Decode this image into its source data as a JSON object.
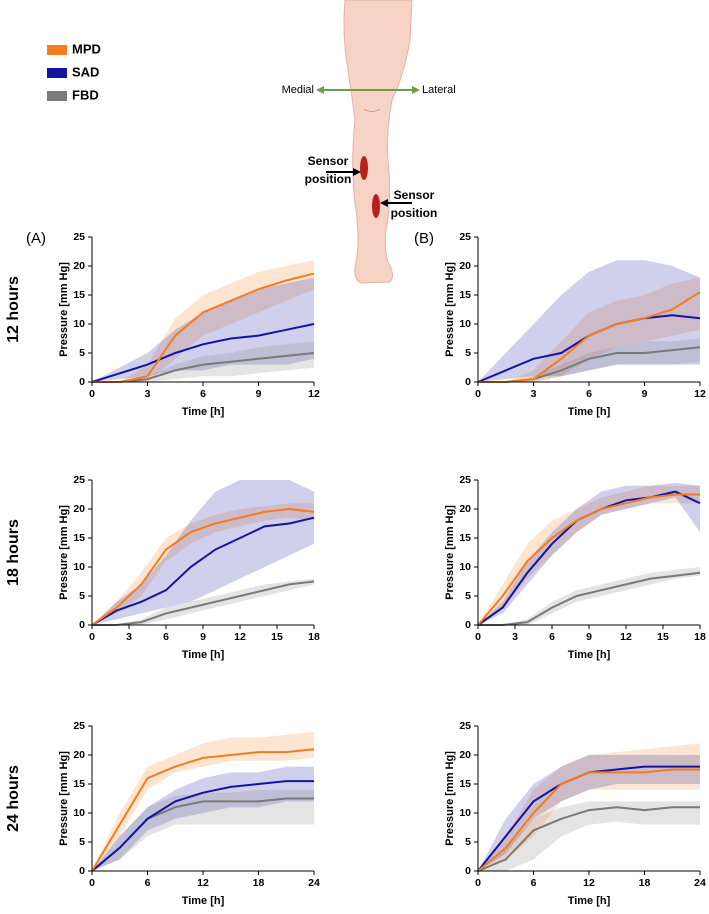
{
  "legend": [
    {
      "name": "MPD",
      "color": "#f47c20"
    },
    {
      "name": "SAD",
      "color": "#1414a0"
    },
    {
      "name": "FBD",
      "color": "#7a7a7a"
    }
  ],
  "panels": [
    "(A)",
    "(B)"
  ],
  "rows": [
    "12 hours",
    "18 hours",
    "24 hours"
  ],
  "diagram": {
    "medial": "Medial",
    "lateral": "Lateral",
    "sensor_labels": [
      [
        "Sensor",
        "position"
      ],
      [
        "Sensor",
        "position"
      ]
    ]
  },
  "chart_data": [
    {
      "type": "line",
      "xlabel": "Time [h]",
      "ylabel": "Pressure [mm Hg]",
      "xlim": [
        0,
        12
      ],
      "xticks": [
        0,
        3,
        6,
        9,
        12
      ],
      "ylim": [
        0,
        25
      ],
      "yticks": [
        0,
        5,
        10,
        15,
        20,
        25
      ],
      "x": [
        0,
        1.5,
        3,
        4.5,
        6,
        7.5,
        9,
        10.5,
        12
      ],
      "series": [
        {
          "values": [
            0,
            0,
            1,
            8,
            12,
            14,
            16,
            17.5,
            18.7
          ],
          "lower": [
            0,
            0,
            0,
            4,
            8,
            10,
            12,
            14,
            16
          ],
          "upper": [
            0,
            0,
            3,
            11,
            15,
            17,
            19,
            20,
            21
          ]
        },
        {
          "values": [
            0,
            1.5,
            3,
            5,
            6.5,
            7.5,
            8,
            9,
            10
          ],
          "lower": [
            0,
            0.5,
            1,
            2,
            2,
            3,
            3,
            3,
            4
          ],
          "upper": [
            0,
            2.5,
            5,
            9,
            12,
            14,
            16,
            17,
            18
          ]
        },
        {
          "values": [
            0,
            0,
            0.5,
            2,
            3,
            3.5,
            4,
            4.5,
            5
          ],
          "lower": [
            0,
            0,
            0,
            0.5,
            1,
            1,
            1.5,
            2,
            2.5
          ],
          "upper": [
            0,
            0,
            1,
            3,
            4.5,
            5,
            6,
            6.5,
            7
          ]
        }
      ]
    },
    {
      "type": "line",
      "xlabel": "Time [h]",
      "ylabel": "Pressure [mm Hg]",
      "xlim": [
        0,
        12
      ],
      "xticks": [
        0,
        3,
        6,
        9,
        12
      ],
      "ylim": [
        0,
        25
      ],
      "yticks": [
        0,
        5,
        10,
        15,
        20,
        25
      ],
      "x": [
        0,
        1.5,
        3,
        4.5,
        6,
        7.5,
        9,
        10.5,
        12
      ],
      "series": [
        {
          "values": [
            0,
            0,
            0.5,
            4,
            8,
            10,
            11,
            12.5,
            15.5
          ],
          "lower": [
            0,
            0,
            0,
            1,
            4,
            6,
            7,
            8,
            9
          ],
          "upper": [
            0,
            0,
            2,
            7,
            12,
            14,
            15,
            17,
            18
          ]
        },
        {
          "values": [
            0,
            2,
            4,
            5,
            8,
            10,
            11,
            11.5,
            11
          ],
          "lower": [
            0,
            0.5,
            1,
            1,
            2,
            3,
            3,
            3,
            3
          ],
          "upper": [
            0,
            5,
            10,
            15,
            19,
            21,
            21,
            20,
            18
          ]
        },
        {
          "values": [
            0,
            0,
            0.5,
            2,
            4,
            5,
            5,
            5.5,
            6
          ],
          "lower": [
            0,
            0,
            0,
            1,
            2,
            3,
            3,
            3,
            3.5
          ],
          "upper": [
            0,
            0,
            1,
            3,
            5,
            6,
            7,
            7,
            7.5
          ]
        }
      ]
    },
    {
      "type": "line",
      "xlabel": "Time [h]",
      "ylabel": "Pressure [mm Hg]",
      "xlim": [
        0,
        18
      ],
      "xticks": [
        0,
        3,
        6,
        9,
        12,
        15,
        18
      ],
      "ylim": [
        0,
        25
      ],
      "yticks": [
        0,
        5,
        10,
        15,
        20,
        25
      ],
      "x": [
        0,
        2,
        4,
        6,
        8,
        10,
        12,
        14,
        16,
        18
      ],
      "series": [
        {
          "values": [
            0,
            3,
            7,
            13,
            16,
            17.5,
            18.5,
            19.5,
            20,
            19.5
          ],
          "lower": [
            0,
            2,
            5,
            11,
            14,
            16,
            17,
            18,
            18.5,
            18
          ],
          "upper": [
            0,
            4,
            9,
            15,
            17.5,
            19,
            20,
            20.5,
            21,
            21
          ]
        },
        {
          "values": [
            0,
            2.5,
            4,
            6,
            10,
            13,
            15,
            17,
            17.5,
            18.5
          ],
          "lower": [
            0,
            1,
            2,
            3,
            4,
            6,
            8,
            10,
            12,
            14
          ],
          "upper": [
            0,
            4,
            7,
            12,
            18,
            23,
            25,
            25,
            25,
            23
          ]
        },
        {
          "values": [
            0,
            0,
            0.5,
            2,
            3,
            4,
            5,
            6,
            7,
            7.5
          ],
          "lower": [
            0,
            0,
            0,
            1,
            2,
            3,
            4,
            5,
            6,
            7
          ],
          "upper": [
            0,
            0,
            1,
            3,
            4,
            5,
            6,
            7,
            7.5,
            8
          ]
        }
      ]
    },
    {
      "type": "line",
      "xlabel": "Time [h]",
      "ylabel": "Pressure [mm Hg]",
      "xlim": [
        0,
        18
      ],
      "xticks": [
        0,
        3,
        6,
        9,
        12,
        15,
        18
      ],
      "ylim": [
        0,
        25
      ],
      "yticks": [
        0,
        5,
        10,
        15,
        20,
        25
      ],
      "x": [
        0,
        2,
        4,
        6,
        8,
        10,
        12,
        14,
        16,
        18
      ],
      "series": [
        {
          "values": [
            0,
            5,
            11,
            15,
            18,
            20,
            21,
            22,
            22.5,
            22.5
          ],
          "lower": [
            0,
            3,
            8,
            12,
            16,
            19,
            20,
            21,
            21,
            21
          ],
          "upper": [
            0,
            7,
            14,
            18,
            20,
            22,
            23,
            24,
            24,
            24
          ]
        },
        {
          "values": [
            0,
            3,
            9,
            14,
            18,
            20,
            21.5,
            22,
            23,
            21
          ],
          "lower": [
            0,
            2,
            7,
            12,
            16,
            19,
            20,
            21,
            22,
            16
          ],
          "upper": [
            0,
            4,
            11,
            16,
            20,
            23,
            24,
            24,
            24.5,
            24
          ]
        },
        {
          "values": [
            0,
            0,
            0.5,
            3,
            5,
            6,
            7,
            8,
            8.5,
            9
          ],
          "lower": [
            0,
            0,
            0,
            2,
            4,
            5,
            6,
            7,
            8,
            8.5
          ],
          "upper": [
            0,
            0,
            1,
            4,
            6,
            7,
            8,
            9,
            9.5,
            10
          ]
        }
      ]
    },
    {
      "type": "line",
      "xlabel": "Time [h]",
      "ylabel": "Pressure [mm Hg]",
      "xlim": [
        0,
        24
      ],
      "xticks": [
        0,
        6,
        12,
        18,
        24
      ],
      "ylim": [
        0,
        25
      ],
      "yticks": [
        0,
        5,
        10,
        15,
        20,
        25
      ],
      "x": [
        0,
        3,
        6,
        9,
        12,
        15,
        18,
        21,
        24
      ],
      "series": [
        {
          "values": [
            0,
            8,
            16,
            18,
            19.5,
            20,
            20.5,
            20.5,
            21
          ],
          "lower": [
            0,
            6,
            14,
            17,
            18,
            19,
            19,
            19,
            19.5
          ],
          "upper": [
            0,
            10,
            18,
            20,
            22,
            23,
            23,
            23.5,
            24
          ]
        },
        {
          "values": [
            0,
            4,
            9,
            12,
            13.5,
            14.5,
            15,
            15.5,
            15.5
          ],
          "lower": [
            0,
            2,
            7,
            9,
            10,
            11,
            11,
            12,
            12
          ],
          "upper": [
            0,
            6,
            11,
            14,
            16,
            17,
            17,
            18,
            18
          ]
        },
        {
          "values": [
            0,
            4,
            9,
            11,
            12,
            12,
            12,
            12.5,
            12.5
          ],
          "lower": [
            0,
            2,
            6,
            8,
            8,
            8,
            8,
            8,
            8
          ],
          "upper": [
            0,
            6,
            11,
            13,
            13.5,
            13.5,
            14,
            14,
            14
          ]
        }
      ]
    },
    {
      "type": "line",
      "xlabel": "Time [h]",
      "ylabel": "Pressure [mm Hg]",
      "xlim": [
        0,
        24
      ],
      "xticks": [
        0,
        6,
        12,
        18,
        24
      ],
      "ylim": [
        0,
        25
      ],
      "yticks": [
        0,
        5,
        10,
        15,
        20,
        25
      ],
      "x": [
        0,
        3,
        6,
        9,
        12,
        15,
        18,
        21,
        24
      ],
      "series": [
        {
          "values": [
            0,
            4,
            10,
            15,
            17,
            17,
            17,
            17.5,
            17.5
          ],
          "lower": [
            0,
            2,
            6,
            12,
            14,
            14,
            14,
            14,
            14
          ],
          "upper": [
            0,
            6,
            14,
            18,
            20,
            20.5,
            21,
            21.5,
            22
          ]
        },
        {
          "values": [
            0,
            6,
            12,
            15,
            17,
            17.5,
            18,
            18,
            18
          ],
          "lower": [
            0,
            3,
            9,
            12,
            14,
            15,
            15,
            15,
            15
          ],
          "upper": [
            0,
            9,
            15,
            18,
            20,
            20,
            20,
            20,
            20
          ]
        },
        {
          "values": [
            0,
            2,
            7,
            9,
            10.5,
            11,
            10.5,
            11,
            11
          ],
          "lower": [
            0,
            0,
            2,
            6,
            8,
            8.5,
            8,
            8,
            8
          ],
          "upper": [
            0,
            4,
            9,
            11,
            12,
            12,
            12,
            12,
            12
          ]
        }
      ]
    }
  ]
}
